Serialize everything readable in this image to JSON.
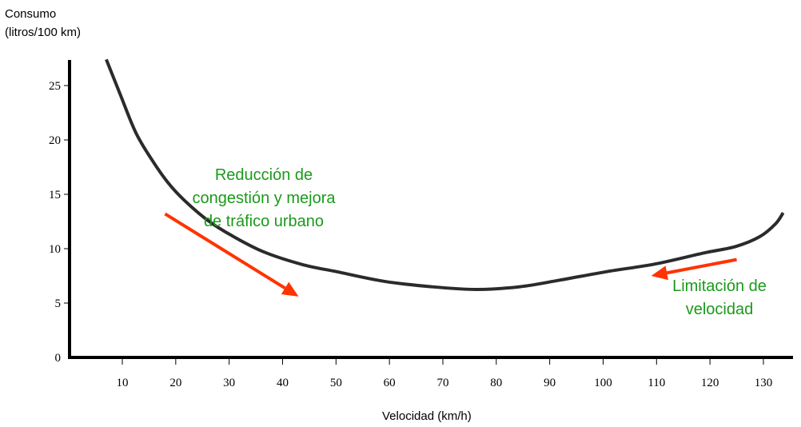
{
  "chart_data": {
    "type": "line",
    "ylabel_line1": "Consumo",
    "ylabel_line2": "(litros/100 km)",
    "xlabel": "Velocidad (km/h)",
    "xlim": [
      10,
      130
    ],
    "ylim": [
      0,
      27
    ],
    "x_ticks": [
      "10",
      "20",
      "30",
      "40",
      "50",
      "60",
      "70",
      "80",
      "90",
      "100",
      "110",
      "120",
      "130"
    ],
    "y_ticks": [
      "0",
      "5",
      "10",
      "15",
      "20",
      "25"
    ],
    "grid": false,
    "series": [
      {
        "color": "#2b2b2b",
        "x": [
          7.0,
          9.6,
          12.5,
          15.5,
          18.5,
          21.5,
          26.0,
          30.5,
          36.5,
          44.0,
          50.0,
          59.0,
          67.9,
          76.4,
          84.4,
          91.8,
          100.8,
          109.8,
          118.8,
          124.8,
          129.3,
          132.3,
          133.7
        ],
        "y": [
          27.4,
          24.2,
          20.7,
          18.2,
          16.1,
          14.5,
          12.6,
          11.2,
          9.7,
          8.5,
          7.9,
          7.0,
          6.5,
          6.25,
          6.5,
          7.1,
          7.9,
          8.6,
          9.6,
          10.2,
          11.1,
          12.3,
          13.3
        ]
      }
    ],
    "annotations": [
      {
        "lines": [
          "Reducción de",
          "congestión y mejora",
          "de tráfico urbano"
        ],
        "color": "#1a9a1a",
        "arrow_color": "#ff3300",
        "arrow_from": [
          18,
          13.2
        ],
        "arrow_to": [
          43,
          5.6
        ]
      },
      {
        "lines": [
          "Limitación de",
          "velocidad"
        ],
        "color": "#1a9a1a",
        "arrow_color": "#ff3300",
        "arrow_from": [
          125,
          9.0
        ],
        "arrow_to": [
          109,
          7.5
        ]
      }
    ]
  }
}
